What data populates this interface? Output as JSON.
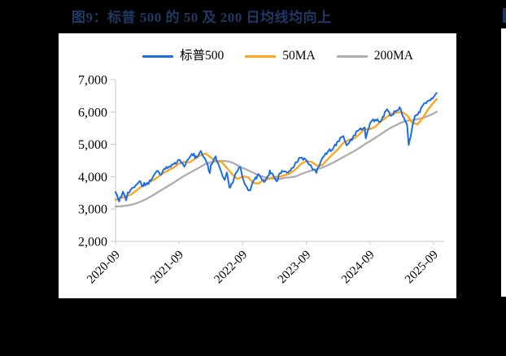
{
  "figure": {
    "title_color": "#1F3864"
  },
  "chart_data": {
    "type": "line",
    "title": "图9：标普 500 的 50 及 200 日均线均向上",
    "xlabel": "",
    "ylabel": "",
    "x_unit": "month offset from 2020-09-01",
    "x_range_labels": [
      "2020-09",
      "2025-09"
    ],
    "ylim": [
      2000,
      7000
    ],
    "grid": false,
    "legend_position": "top",
    "y_ticks": [
      {
        "v": 2000,
        "label": "2,000"
      },
      {
        "v": 3000,
        "label": "3,000"
      },
      {
        "v": 4000,
        "label": "4,000"
      },
      {
        "v": 5000,
        "label": "5,000"
      },
      {
        "v": 6000,
        "label": "6,000"
      },
      {
        "v": 7000,
        "label": "7,000"
      }
    ],
    "x_ticks": [
      {
        "m": 0,
        "label": "2020-09"
      },
      {
        "m": 12,
        "label": "2021-09"
      },
      {
        "m": 24,
        "label": "2022-09"
      },
      {
        "m": 36,
        "label": "2023-09"
      },
      {
        "m": 48,
        "label": "2024-09"
      },
      {
        "m": 60,
        "label": "2025-09"
      }
    ],
    "series": [
      {
        "name": "标普500",
        "color": "#1B6EE8",
        "points": [
          [
            0,
            3527
          ],
          [
            0.7,
            3237
          ],
          [
            1,
            3363
          ],
          [
            1.4,
            3534
          ],
          [
            2,
            3270
          ],
          [
            2.3,
            3510
          ],
          [
            3,
            3622
          ],
          [
            4,
            3756
          ],
          [
            4.7,
            3855
          ],
          [
            5,
            3714
          ],
          [
            6,
            3811
          ],
          [
            6.1,
            3768
          ],
          [
            7,
            3973
          ],
          [
            8,
            4181
          ],
          [
            8.4,
            4063
          ],
          [
            9,
            4204
          ],
          [
            10,
            4298
          ],
          [
            11,
            4395
          ],
          [
            12,
            4523
          ],
          [
            13,
            4308
          ],
          [
            14,
            4605
          ],
          [
            14.8,
            4713
          ],
          [
            15,
            4567
          ],
          [
            16,
            4766
          ],
          [
            16.1,
            4797
          ],
          [
            17,
            4516
          ],
          [
            17.8,
            4115
          ],
          [
            18,
            4374
          ],
          [
            18.9,
            4631
          ],
          [
            19,
            4530
          ],
          [
            20,
            4132
          ],
          [
            20.6,
            3900
          ],
          [
            21,
            4132
          ],
          [
            21.5,
            3667
          ],
          [
            22,
            3785
          ],
          [
            22.8,
            4130
          ],
          [
            23.5,
            4305
          ],
          [
            24,
            3955
          ],
          [
            25,
            3586
          ],
          [
            25.4,
            3577
          ],
          [
            26,
            3872
          ],
          [
            27,
            4080
          ],
          [
            28,
            3840
          ],
          [
            29,
            4077
          ],
          [
            29.1,
            4195
          ],
          [
            30,
            3970
          ],
          [
            30.4,
            3855
          ],
          [
            31,
            4109
          ],
          [
            32,
            4169
          ],
          [
            33,
            4180
          ],
          [
            34,
            4450
          ],
          [
            35,
            4589
          ],
          [
            36,
            4508
          ],
          [
            37,
            4288
          ],
          [
            37.9,
            4117
          ],
          [
            38,
            4194
          ],
          [
            39,
            4568
          ],
          [
            40,
            4770
          ],
          [
            41,
            4846
          ],
          [
            42,
            5096
          ],
          [
            43,
            5254
          ],
          [
            43.6,
            4967
          ],
          [
            44,
            5036
          ],
          [
            45,
            5278
          ],
          [
            46,
            5460
          ],
          [
            47,
            5522
          ],
          [
            47.2,
            5186
          ],
          [
            48,
            5648
          ],
          [
            49,
            5762
          ],
          [
            50,
            5705
          ],
          [
            51,
            6032
          ],
          [
            51.2,
            6090
          ],
          [
            52,
            5882
          ],
          [
            53,
            6041
          ],
          [
            53.6,
            6147
          ],
          [
            54,
            5955
          ],
          [
            55,
            5612
          ],
          [
            55.3,
            4983
          ],
          [
            56,
            5569
          ],
          [
            56.5,
            5886
          ],
          [
            57,
            5912
          ],
          [
            58,
            6205
          ],
          [
            59,
            6340
          ],
          [
            60,
            6460
          ],
          [
            60.6,
            6584
          ]
        ]
      },
      {
        "name": "50MA",
        "color": "#FFA319",
        "points": [
          [
            0,
            3290
          ],
          [
            1,
            3340
          ],
          [
            2,
            3390
          ],
          [
            3,
            3455
          ],
          [
            4,
            3580
          ],
          [
            5,
            3710
          ],
          [
            6,
            3805
          ],
          [
            7,
            3885
          ],
          [
            8,
            3985
          ],
          [
            9,
            4110
          ],
          [
            10,
            4200
          ],
          [
            11,
            4290
          ],
          [
            12,
            4405
          ],
          [
            13,
            4460
          ],
          [
            14,
            4445
          ],
          [
            15,
            4555
          ],
          [
            16,
            4660
          ],
          [
            17,
            4715
          ],
          [
            18,
            4590
          ],
          [
            19,
            4465
          ],
          [
            20,
            4460
          ],
          [
            21,
            4275
          ],
          [
            22,
            4075
          ],
          [
            23,
            3930
          ],
          [
            24,
            4005
          ],
          [
            25,
            3985
          ],
          [
            26,
            3810
          ],
          [
            27,
            3790
          ],
          [
            28,
            3905
          ],
          [
            29,
            3935
          ],
          [
            30,
            3995
          ],
          [
            31,
            4000
          ],
          [
            32,
            4050
          ],
          [
            33,
            4110
          ],
          [
            34,
            4230
          ],
          [
            35,
            4400
          ],
          [
            36,
            4480
          ],
          [
            37,
            4455
          ],
          [
            38,
            4345
          ],
          [
            39,
            4355
          ],
          [
            40,
            4540
          ],
          [
            41,
            4700
          ],
          [
            42,
            4860
          ],
          [
            43,
            5050
          ],
          [
            44,
            5135
          ],
          [
            45,
            5180
          ],
          [
            46,
            5310
          ],
          [
            47,
            5475
          ],
          [
            48,
            5470
          ],
          [
            49,
            5540
          ],
          [
            50,
            5700
          ],
          [
            51,
            5820
          ],
          [
            52,
            5950
          ],
          [
            53,
            5980
          ],
          [
            54,
            6005
          ],
          [
            55,
            5900
          ],
          [
            56,
            5660
          ],
          [
            57,
            5620
          ],
          [
            58,
            5830
          ],
          [
            59,
            6085
          ],
          [
            60,
            6290
          ],
          [
            60.6,
            6400
          ]
        ]
      },
      {
        "name": "200MA",
        "color": "#ADADAD",
        "points": [
          [
            0,
            3075
          ],
          [
            1,
            3085
          ],
          [
            2,
            3105
          ],
          [
            3,
            3130
          ],
          [
            4,
            3180
          ],
          [
            5,
            3250
          ],
          [
            6,
            3330
          ],
          [
            7,
            3420
          ],
          [
            8,
            3520
          ],
          [
            9,
            3620
          ],
          [
            10,
            3720
          ],
          [
            11,
            3820
          ],
          [
            12,
            3930
          ],
          [
            13,
            4030
          ],
          [
            14,
            4120
          ],
          [
            15,
            4210
          ],
          [
            16,
            4300
          ],
          [
            17,
            4400
          ],
          [
            18,
            4450
          ],
          [
            19,
            4480
          ],
          [
            20,
            4490
          ],
          [
            21,
            4480
          ],
          [
            22,
            4440
          ],
          [
            23,
            4350
          ],
          [
            24,
            4270
          ],
          [
            25,
            4200
          ],
          [
            26,
            4120
          ],
          [
            27,
            4050
          ],
          [
            28,
            3990
          ],
          [
            29,
            3950
          ],
          [
            30,
            3940
          ],
          [
            31,
            3930
          ],
          [
            32,
            3970
          ],
          [
            33,
            3980
          ],
          [
            34,
            4010
          ],
          [
            35,
            4080
          ],
          [
            36,
            4140
          ],
          [
            37,
            4190
          ],
          [
            38,
            4230
          ],
          [
            39,
            4280
          ],
          [
            40,
            4350
          ],
          [
            41,
            4430
          ],
          [
            42,
            4520
          ],
          [
            43,
            4610
          ],
          [
            44,
            4700
          ],
          [
            45,
            4790
          ],
          [
            46,
            4890
          ],
          [
            47,
            5000
          ],
          [
            48,
            5100
          ],
          [
            49,
            5200
          ],
          [
            50,
            5310
          ],
          [
            51,
            5420
          ],
          [
            52,
            5520
          ],
          [
            53,
            5600
          ],
          [
            54,
            5680
          ],
          [
            55,
            5730
          ],
          [
            56,
            5750
          ],
          [
            57,
            5780
          ],
          [
            58,
            5820
          ],
          [
            59,
            5880
          ],
          [
            60,
            5950
          ],
          [
            60.6,
            6010
          ]
        ]
      }
    ]
  }
}
